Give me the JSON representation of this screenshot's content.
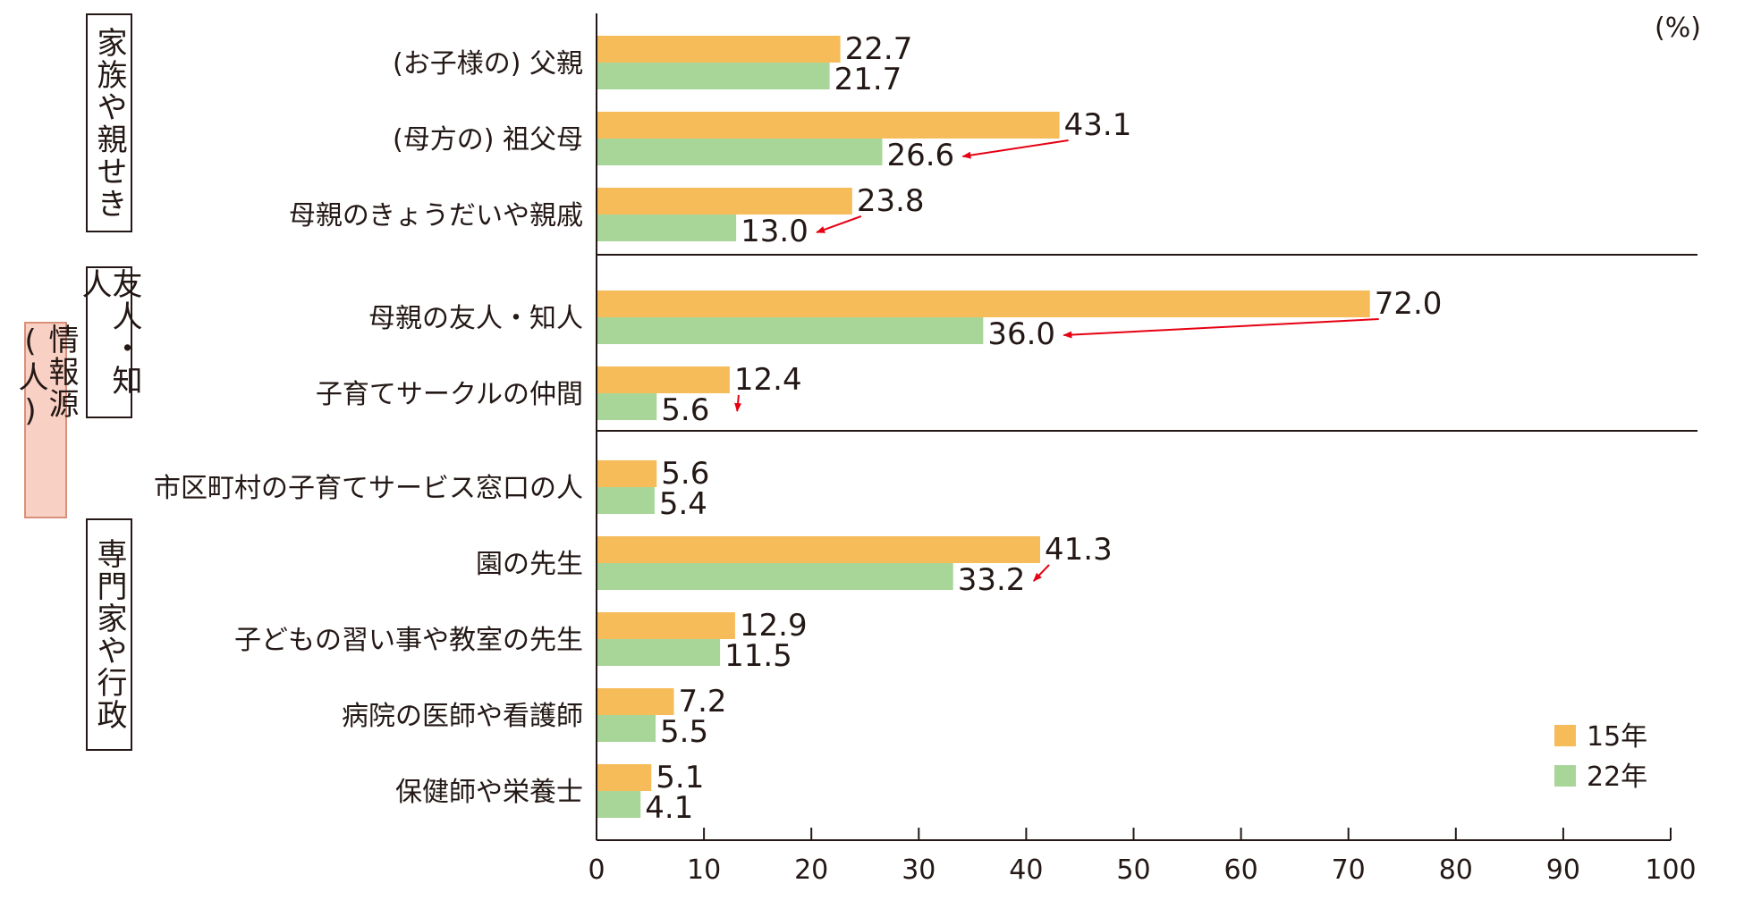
{
  "unit_label": "(%)",
  "outer_group_label": "情報源(人)",
  "groups": [
    {
      "label": "家族や親せき"
    },
    {
      "label": "友人・知人"
    },
    {
      "label": "専門家や行政"
    }
  ],
  "legend": [
    {
      "label": "15年",
      "color": "#f6bc5a"
    },
    {
      "label": "22年",
      "color": "#a8d698"
    }
  ],
  "colors": {
    "series_2015": "#f6bc5a",
    "series_2022": "#a8d698",
    "arrow": "#e60012",
    "outer_box_fill": "#f8d0c4"
  },
  "chart_data": {
    "type": "bar",
    "orientation": "horizontal",
    "xlim": [
      0,
      100
    ],
    "xticks": [
      0,
      10,
      20,
      30,
      40,
      50,
      60,
      70,
      80,
      90,
      100
    ],
    "categories": [
      "(お子様の) 父親",
      "(母方の) 祖父母",
      "母親のきょうだいや親戚",
      "母親の友人・知人",
      "子育てサークルの仲間",
      "市区町村の子育てサービス窓口の人",
      "園の先生",
      "子どもの習い事や教室の先生",
      "病院の医師や看護師",
      "保健師や栄養士"
    ],
    "series": [
      {
        "name": "15年",
        "values": [
          22.7,
          43.1,
          23.8,
          72.0,
          12.4,
          5.6,
          41.3,
          12.9,
          7.2,
          5.1
        ]
      },
      {
        "name": "22年",
        "values": [
          21.7,
          26.6,
          13.0,
          36.0,
          5.6,
          5.4,
          33.2,
          11.5,
          5.5,
          4.1
        ]
      }
    ],
    "value_labels": [
      [
        "22.7",
        "43.1",
        "23.8",
        "72.0",
        "12.4",
        "5.6",
        "41.3",
        "12.9",
        "7.2",
        "5.1"
      ],
      [
        "21.7",
        "26.6",
        "13.0",
        "36.0",
        "5.6",
        "5.4",
        "33.2",
        "11.5",
        "5.5",
        "4.1"
      ]
    ],
    "decline_arrows": [
      1,
      2,
      3,
      4,
      6
    ],
    "legend_position": "bottom-right"
  }
}
